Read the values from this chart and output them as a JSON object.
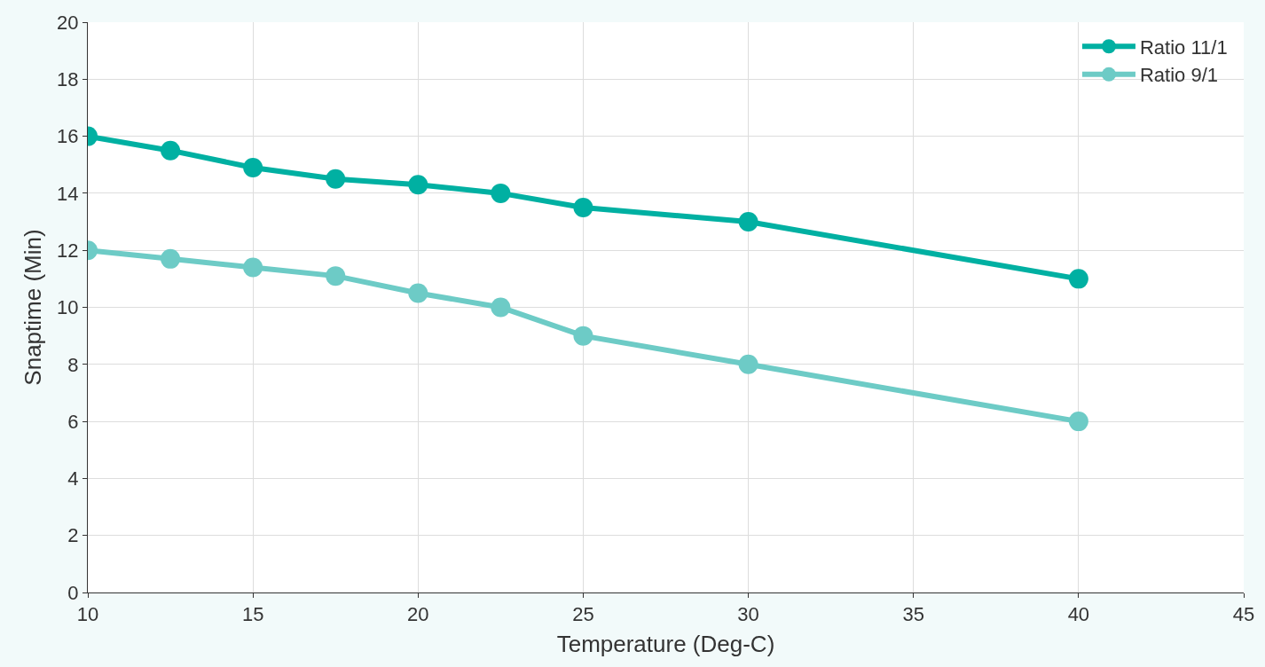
{
  "chart_data": {
    "type": "line",
    "xlabel": "Temperature (Deg-C)",
    "ylabel": "Snaptime (Min)",
    "x": [
      10,
      12.5,
      15,
      17.5,
      20,
      22.5,
      25,
      30,
      40
    ],
    "series": [
      {
        "name": "Ratio 11/1",
        "color": "#00b0a2",
        "values": [
          16,
          15.5,
          14.9,
          14.5,
          14.3,
          14,
          13.5,
          13,
          11
        ]
      },
      {
        "name": "Ratio 9/1",
        "color": "#6dcbc6",
        "values": [
          12,
          11.7,
          11.4,
          11.1,
          10.5,
          10,
          9,
          8,
          6
        ]
      }
    ],
    "xlim": [
      10,
      45
    ],
    "xticks": [
      10,
      15,
      20,
      25,
      30,
      35,
      40,
      45
    ],
    "ylim": [
      0,
      20
    ],
    "yticks": [
      0,
      2,
      4,
      6,
      8,
      10,
      12,
      14,
      16,
      18,
      20
    ],
    "grid": true,
    "legend": "top right",
    "marker": "circle",
    "line_style": "solid"
  }
}
